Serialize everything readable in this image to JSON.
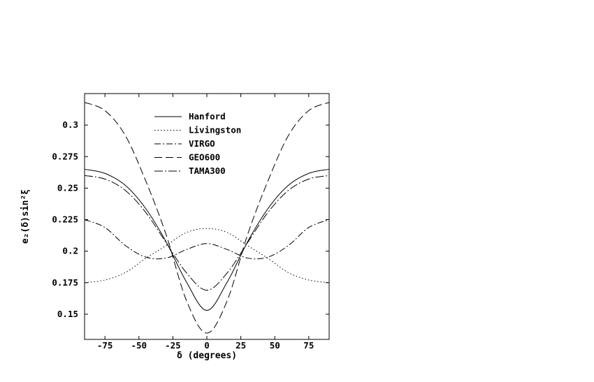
{
  "chart_data": {
    "type": "line",
    "xlabel": "δ (degrees)",
    "ylabel": "e₂(δ)sin²ξ",
    "xlim": [
      -90,
      90
    ],
    "ylim": [
      0.13,
      0.325
    ],
    "xticks": [
      {
        "value": -75,
        "label": "-75"
      },
      {
        "value": -50,
        "label": "-50"
      },
      {
        "value": -25,
        "label": "-25"
      },
      {
        "value": 0,
        "label": "0"
      },
      {
        "value": 25,
        "label": "25"
      },
      {
        "value": 50,
        "label": "50"
      },
      {
        "value": 75,
        "label": "75"
      }
    ],
    "yticks": [
      {
        "value": 0.15,
        "label": "0.15"
      },
      {
        "value": 0.175,
        "label": "0.175"
      },
      {
        "value": 0.2,
        "label": "0.2"
      },
      {
        "value": 0.225,
        "label": "0.225"
      },
      {
        "value": 0.25,
        "label": "0.25"
      },
      {
        "value": 0.275,
        "label": "0.275"
      },
      {
        "value": 0.3,
        "label": "0.3"
      }
    ],
    "x": [
      -90,
      -75,
      -60,
      -45,
      -30,
      -15,
      0,
      15,
      30,
      45,
      60,
      75,
      90
    ],
    "series": [
      {
        "name": "Hanford",
        "dash": "",
        "values": [
          0.265,
          0.2617,
          0.2522,
          0.2338,
          0.2075,
          0.1755,
          0.153,
          0.1755,
          0.2075,
          0.2338,
          0.2522,
          0.2617,
          0.265
        ]
      },
      {
        "name": "Livingston",
        "dash": "1.5,3",
        "values": [
          0.175,
          0.1771,
          0.183,
          0.1943,
          0.2044,
          0.2148,
          0.218,
          0.2148,
          0.2044,
          0.1943,
          0.183,
          0.1771,
          0.175
        ]
      },
      {
        "name": "VIRGO",
        "dash": "9,3,2,3",
        "values": [
          0.225,
          0.2188,
          0.2045,
          0.1953,
          0.1945,
          0.2013,
          0.206,
          0.2013,
          0.1945,
          0.1953,
          0.2045,
          0.2188,
          0.225
        ]
      },
      {
        "name": "GEO600",
        "dash": "11,5",
        "values": [
          0.318,
          0.3115,
          0.2917,
          0.2558,
          0.2132,
          0.1608,
          0.135,
          0.1608,
          0.2132,
          0.2558,
          0.2917,
          0.3115,
          0.318
        ]
      },
      {
        "name": "TAMA300",
        "dash": "12,3,2,3",
        "values": [
          0.26,
          0.2572,
          0.2482,
          0.2308,
          0.2068,
          0.1828,
          0.169,
          0.1828,
          0.2068,
          0.2308,
          0.2482,
          0.2572,
          0.26
        ]
      }
    ],
    "legend": "upper-center inside plot",
    "grid": false
  }
}
